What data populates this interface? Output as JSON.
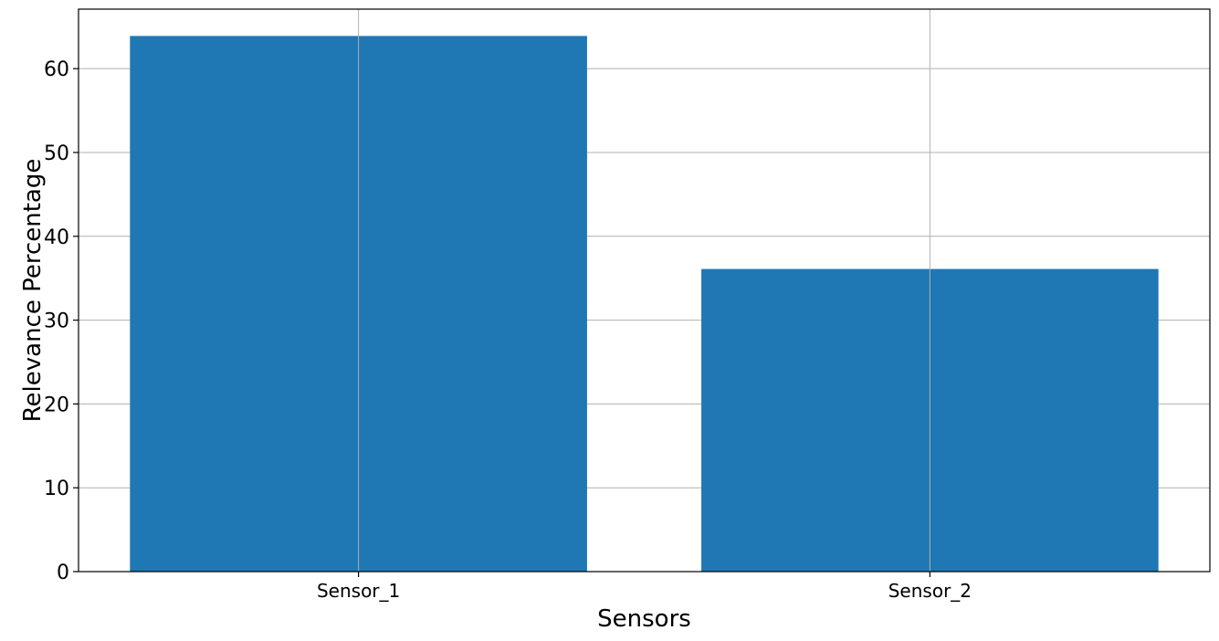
{
  "chart_data": {
    "type": "bar",
    "title": "",
    "xlabel": "Sensors",
    "ylabel": "Relevance Percentage",
    "categories": [
      "Sensor_1",
      "Sensor_2"
    ],
    "values": [
      63.9,
      36.1
    ],
    "ylim": [
      0,
      67.1
    ],
    "yticks": [
      0,
      10,
      20,
      30,
      40,
      50,
      60
    ],
    "ytick_labels": [
      "0",
      "10",
      "20",
      "30",
      "40",
      "50",
      "60"
    ],
    "grid": true,
    "legend": "none",
    "colors": {
      "bar": "#1f77b4",
      "grid": "#b0b0b0",
      "axes": "#000000"
    }
  }
}
